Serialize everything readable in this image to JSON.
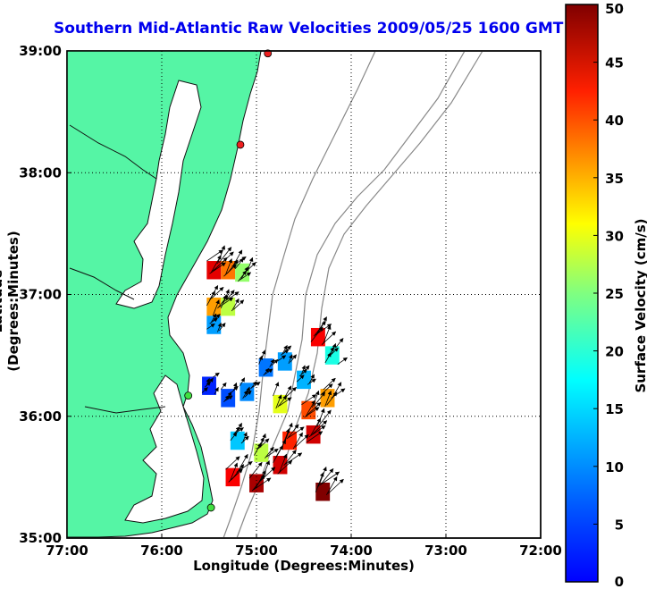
{
  "chart_data": {
    "type": "map",
    "title": "Southern Mid-Atlantic Raw Velocities 2009/05/25 1600 GMT",
    "xlabel": "Longitude (Degrees:Minutes)",
    "ylabel": "Latitude (Degrees:Minutes)",
    "x_ticks": [
      "77:00",
      "76:00",
      "75:00",
      "74:00",
      "73:00",
      "72:00"
    ],
    "y_ticks": [
      "39:00",
      "38:00",
      "37:00",
      "36:00",
      "35:00"
    ],
    "xlim": [
      -77,
      -72
    ],
    "ylim": [
      35,
      39
    ],
    "grid": true,
    "colorbar": {
      "label": "Surface Velocity (cm/s)",
      "range": [
        0,
        50
      ],
      "ticks": [
        "0",
        "5",
        "10",
        "15",
        "20",
        "25",
        "30",
        "35",
        "40",
        "45",
        "50"
      ]
    },
    "land_color": "#55f5a5",
    "stations": [
      {
        "lon": -74.88,
        "lat": 38.98,
        "color": "#ee2020"
      },
      {
        "lon": -75.17,
        "lat": 38.23,
        "color": "#ee2020"
      },
      {
        "lon": -75.72,
        "lat": 36.17,
        "color": "#40e040"
      },
      {
        "lon": -75.48,
        "lat": 35.25,
        "color": "#40e040"
      }
    ],
    "velocity_cells": [
      {
        "lon": -75.45,
        "lat": 37.2,
        "speed": 45
      },
      {
        "lon": -75.3,
        "lat": 37.2,
        "speed": 38
      },
      {
        "lon": -75.15,
        "lat": 37.18,
        "speed": 26
      },
      {
        "lon": -75.45,
        "lat": 36.9,
        "speed": 36
      },
      {
        "lon": -75.3,
        "lat": 36.9,
        "speed": 28
      },
      {
        "lon": -75.45,
        "lat": 36.75,
        "speed": 14
      },
      {
        "lon": -75.5,
        "lat": 36.25,
        "speed": 8
      },
      {
        "lon": -75.3,
        "lat": 36.15,
        "speed": 10
      },
      {
        "lon": -75.1,
        "lat": 36.2,
        "speed": 13
      },
      {
        "lon": -74.9,
        "lat": 36.4,
        "speed": 12
      },
      {
        "lon": -74.7,
        "lat": 36.45,
        "speed": 14
      },
      {
        "lon": -74.5,
        "lat": 36.3,
        "speed": 15
      },
      {
        "lon": -74.35,
        "lat": 36.65,
        "speed": 44
      },
      {
        "lon": -74.2,
        "lat": 36.5,
        "speed": 20
      },
      {
        "lon": -74.75,
        "lat": 36.1,
        "speed": 30
      },
      {
        "lon": -74.45,
        "lat": 36.05,
        "speed": 40
      },
      {
        "lon": -74.25,
        "lat": 36.15,
        "speed": 36
      },
      {
        "lon": -75.2,
        "lat": 35.8,
        "speed": 16
      },
      {
        "lon": -74.95,
        "lat": 35.7,
        "speed": 28
      },
      {
        "lon": -74.65,
        "lat": 35.8,
        "speed": 42
      },
      {
        "lon": -74.4,
        "lat": 35.85,
        "speed": 46
      },
      {
        "lon": -75.25,
        "lat": 35.5,
        "speed": 44
      },
      {
        "lon": -75.0,
        "lat": 35.45,
        "speed": 48
      },
      {
        "lon": -74.75,
        "lat": 35.6,
        "speed": 46
      },
      {
        "lon": -74.3,
        "lat": 35.38,
        "speed": 50
      }
    ]
  }
}
